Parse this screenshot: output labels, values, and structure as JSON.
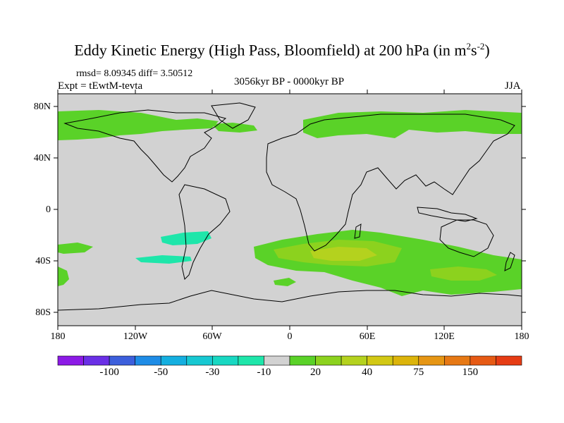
{
  "title": {
    "main": "Eddy Kinetic Energy (High Pass, Bloomfield) at 200 hPa (in m",
    "sup1": "2",
    "mid": "s",
    "sup2": "-2",
    "end": ")"
  },
  "stats": "rmsd= 8.09345 diff= 3.50512",
  "experiment": "Expt = tEwtM-tevta",
  "period": "3056kyr BP - 0000kyr BP",
  "season": "JJA",
  "lat_labels": [
    "80N",
    "40N",
    "0",
    "40S",
    "80S"
  ],
  "lon_labels": [
    "180",
    "120W",
    "60W",
    "0",
    "60E",
    "120E",
    "180"
  ],
  "colorbar": {
    "colors": [
      "#8c1ae6",
      "#6a2fe6",
      "#3c5fdc",
      "#1e8ce6",
      "#14afe0",
      "#17c8d2",
      "#18d8c2",
      "#1ee6aa",
      "#d2d2d2",
      "#5ad228",
      "#8cd21e",
      "#b4d21e",
      "#d2c814",
      "#dcb40a",
      "#e69614",
      "#e67814",
      "#e65a14",
      "#e63c14"
    ],
    "labels": [
      "-100",
      "-50",
      "-30",
      "-10",
      "20",
      "40",
      "75",
      "150"
    ]
  }
}
